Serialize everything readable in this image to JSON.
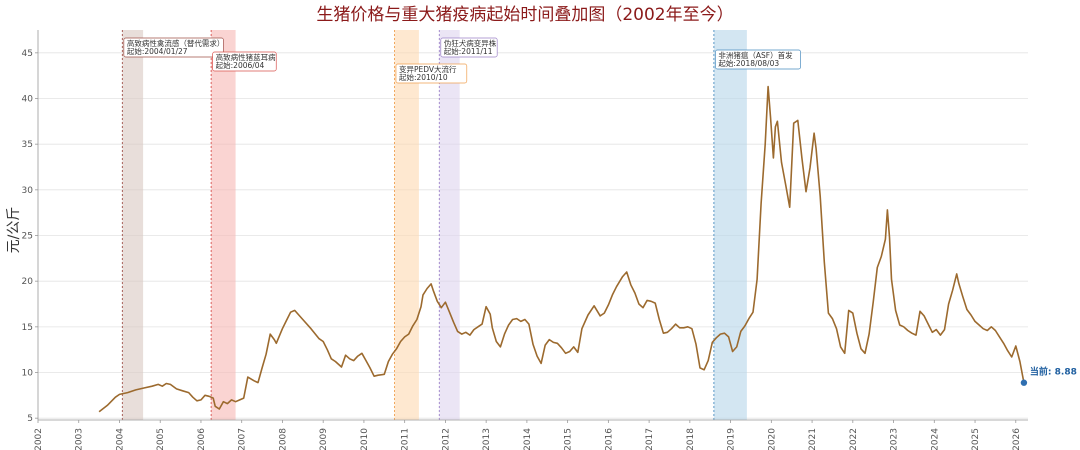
{
  "chart_data": {
    "type": "line",
    "title": "生猪价格与重大猪疫病起始时间叠加图（2002年至今）",
    "ylabel": "元/公斤",
    "xlabel": "",
    "xlim": [
      2002.0,
      2026.3
    ],
    "ylim": [
      4.8,
      47.5
    ],
    "x_ticks": [
      "2002",
      "2003",
      "2004",
      "2005",
      "2006",
      "2007",
      "2008",
      "2009",
      "2010",
      "2011",
      "2012",
      "2013",
      "2014",
      "2015",
      "2016",
      "2017",
      "2018",
      "2019",
      "2020",
      "2021",
      "2022",
      "2023",
      "2024",
      "2025",
      "2026"
    ],
    "y_ticks": [
      5,
      10,
      15,
      20,
      25,
      30,
      35,
      40,
      45
    ],
    "grid": "horizontal",
    "line_color": "#9c6a2e",
    "series": [
      {
        "points": [
          [
            2003.5,
            5.7
          ],
          [
            2003.7,
            6.4
          ],
          [
            2003.9,
            7.3
          ],
          [
            2004.0,
            7.6
          ],
          [
            2004.2,
            7.8
          ],
          [
            2004.4,
            8.1
          ],
          [
            2004.6,
            8.3
          ],
          [
            2004.8,
            8.5
          ],
          [
            2004.95,
            8.7
          ],
          [
            2005.05,
            8.5
          ],
          [
            2005.15,
            8.8
          ],
          [
            2005.25,
            8.7
          ],
          [
            2005.4,
            8.2
          ],
          [
            2005.55,
            8.0
          ],
          [
            2005.7,
            7.8
          ],
          [
            2005.8,
            7.3
          ],
          [
            2005.9,
            6.9
          ],
          [
            2006.0,
            7.0
          ],
          [
            2006.1,
            7.5
          ],
          [
            2006.2,
            7.4
          ],
          [
            2006.3,
            7.2
          ],
          [
            2006.35,
            6.3
          ],
          [
            2006.45,
            6.0
          ],
          [
            2006.55,
            6.8
          ],
          [
            2006.65,
            6.6
          ],
          [
            2006.75,
            7.0
          ],
          [
            2006.85,
            6.8
          ],
          [
            2006.95,
            7.0
          ],
          [
            2007.05,
            7.2
          ],
          [
            2007.15,
            9.5
          ],
          [
            2007.3,
            9.1
          ],
          [
            2007.4,
            8.9
          ],
          [
            2007.5,
            10.5
          ],
          [
            2007.6,
            12.0
          ],
          [
            2007.7,
            14.2
          ],
          [
            2007.8,
            13.6
          ],
          [
            2007.85,
            13.2
          ],
          [
            2008.0,
            14.8
          ],
          [
            2008.1,
            15.7
          ],
          [
            2008.2,
            16.6
          ],
          [
            2008.3,
            16.8
          ],
          [
            2008.5,
            15.8
          ],
          [
            2008.7,
            14.8
          ],
          [
            2008.9,
            13.7
          ],
          [
            2009.0,
            13.4
          ],
          [
            2009.1,
            12.5
          ],
          [
            2009.2,
            11.5
          ],
          [
            2009.3,
            11.2
          ],
          [
            2009.45,
            10.6
          ],
          [
            2009.55,
            11.9
          ],
          [
            2009.65,
            11.5
          ],
          [
            2009.75,
            11.3
          ],
          [
            2009.85,
            11.8
          ],
          [
            2009.95,
            12.1
          ],
          [
            2010.05,
            11.3
          ],
          [
            2010.15,
            10.5
          ],
          [
            2010.25,
            9.6
          ],
          [
            2010.35,
            9.7
          ],
          [
            2010.5,
            9.8
          ],
          [
            2010.6,
            11.2
          ],
          [
            2010.7,
            12.0
          ],
          [
            2010.8,
            12.6
          ],
          [
            2010.9,
            13.4
          ],
          [
            2011.0,
            13.9
          ],
          [
            2011.1,
            14.2
          ],
          [
            2011.2,
            15.1
          ],
          [
            2011.3,
            15.8
          ],
          [
            2011.4,
            17.2
          ],
          [
            2011.45,
            18.5
          ],
          [
            2011.55,
            19.2
          ],
          [
            2011.65,
            19.7
          ],
          [
            2011.7,
            19.0
          ],
          [
            2011.8,
            17.8
          ],
          [
            2011.9,
            17.1
          ],
          [
            2012.0,
            17.7
          ],
          [
            2012.1,
            16.6
          ],
          [
            2012.2,
            15.5
          ],
          [
            2012.3,
            14.5
          ],
          [
            2012.4,
            14.2
          ],
          [
            2012.5,
            14.4
          ],
          [
            2012.6,
            14.1
          ],
          [
            2012.7,
            14.7
          ],
          [
            2012.8,
            15.0
          ],
          [
            2012.9,
            15.3
          ],
          [
            2013.0,
            17.2
          ],
          [
            2013.1,
            16.4
          ],
          [
            2013.15,
            14.9
          ],
          [
            2013.25,
            13.4
          ],
          [
            2013.35,
            12.8
          ],
          [
            2013.45,
            14.2
          ],
          [
            2013.55,
            15.2
          ],
          [
            2013.65,
            15.8
          ],
          [
            2013.75,
            15.9
          ],
          [
            2013.85,
            15.6
          ],
          [
            2013.95,
            15.8
          ],
          [
            2014.05,
            15.3
          ],
          [
            2014.15,
            13.1
          ],
          [
            2014.25,
            11.8
          ],
          [
            2014.35,
            11.0
          ],
          [
            2014.45,
            13.0
          ],
          [
            2014.55,
            13.6
          ],
          [
            2014.65,
            13.3
          ],
          [
            2014.75,
            13.2
          ],
          [
            2014.85,
            12.7
          ],
          [
            2014.95,
            12.1
          ],
          [
            2015.05,
            12.3
          ],
          [
            2015.15,
            12.8
          ],
          [
            2015.25,
            12.2
          ],
          [
            2015.35,
            14.8
          ],
          [
            2015.5,
            16.3
          ],
          [
            2015.65,
            17.3
          ],
          [
            2015.8,
            16.2
          ],
          [
            2015.9,
            16.5
          ],
          [
            2016.0,
            17.4
          ],
          [
            2016.1,
            18.5
          ],
          [
            2016.2,
            19.4
          ],
          [
            2016.35,
            20.5
          ],
          [
            2016.45,
            21.0
          ],
          [
            2016.55,
            19.6
          ],
          [
            2016.65,
            18.7
          ],
          [
            2016.75,
            17.5
          ],
          [
            2016.85,
            17.1
          ],
          [
            2016.95,
            17.9
          ],
          [
            2017.05,
            17.8
          ],
          [
            2017.15,
            17.6
          ],
          [
            2017.25,
            15.8
          ],
          [
            2017.35,
            14.3
          ],
          [
            2017.45,
            14.4
          ],
          [
            2017.55,
            14.8
          ],
          [
            2017.65,
            15.3
          ],
          [
            2017.75,
            14.9
          ],
          [
            2017.85,
            14.9
          ],
          [
            2017.95,
            15.0
          ],
          [
            2018.05,
            14.8
          ],
          [
            2018.15,
            13.1
          ],
          [
            2018.25,
            10.5
          ],
          [
            2018.35,
            10.3
          ],
          [
            2018.45,
            11.3
          ],
          [
            2018.55,
            13.3
          ],
          [
            2018.65,
            13.8
          ],
          [
            2018.75,
            14.2
          ],
          [
            2018.85,
            14.3
          ],
          [
            2018.95,
            13.9
          ],
          [
            2019.05,
            12.3
          ],
          [
            2019.15,
            12.8
          ],
          [
            2019.25,
            14.5
          ],
          [
            2019.35,
            15.1
          ],
          [
            2019.45,
            15.9
          ],
          [
            2019.55,
            16.6
          ],
          [
            2019.65,
            20.2
          ],
          [
            2019.75,
            28.5
          ],
          [
            2019.85,
            35.0
          ],
          [
            2019.92,
            41.3
          ],
          [
            2019.98,
            38.0
          ],
          [
            2020.05,
            33.5
          ],
          [
            2020.1,
            36.9
          ],
          [
            2020.15,
            37.5
          ],
          [
            2020.25,
            33.0
          ],
          [
            2020.35,
            30.6
          ],
          [
            2020.45,
            28.1
          ],
          [
            2020.55,
            37.3
          ],
          [
            2020.65,
            37.6
          ],
          [
            2020.75,
            33.5
          ],
          [
            2020.85,
            29.8
          ],
          [
            2020.95,
            32.4
          ],
          [
            2021.05,
            36.2
          ],
          [
            2021.1,
            34.5
          ],
          [
            2021.2,
            29.3
          ],
          [
            2021.3,
            22.1
          ],
          [
            2021.4,
            16.5
          ],
          [
            2021.5,
            15.9
          ],
          [
            2021.6,
            14.8
          ],
          [
            2021.7,
            12.8
          ],
          [
            2021.8,
            12.1
          ],
          [
            2021.9,
            16.8
          ],
          [
            2022.0,
            16.5
          ],
          [
            2022.1,
            14.3
          ],
          [
            2022.2,
            12.6
          ],
          [
            2022.3,
            12.1
          ],
          [
            2022.4,
            14.2
          ],
          [
            2022.5,
            17.7
          ],
          [
            2022.6,
            21.5
          ],
          [
            2022.7,
            22.7
          ],
          [
            2022.8,
            24.6
          ],
          [
            2022.85,
            27.8
          ],
          [
            2022.9,
            24.8
          ],
          [
            2022.95,
            20.2
          ],
          [
            2023.05,
            16.8
          ],
          [
            2023.15,
            15.2
          ],
          [
            2023.25,
            15.0
          ],
          [
            2023.35,
            14.6
          ],
          [
            2023.45,
            14.3
          ],
          [
            2023.55,
            14.1
          ],
          [
            2023.65,
            16.7
          ],
          [
            2023.75,
            16.2
          ],
          [
            2023.85,
            15.3
          ],
          [
            2023.95,
            14.4
          ],
          [
            2024.05,
            14.7
          ],
          [
            2024.15,
            14.1
          ],
          [
            2024.25,
            14.7
          ],
          [
            2024.35,
            17.5
          ],
          [
            2024.45,
            19.0
          ],
          [
            2024.55,
            20.8
          ],
          [
            2024.6,
            19.8
          ],
          [
            2024.7,
            18.3
          ],
          [
            2024.8,
            16.9
          ],
          [
            2024.9,
            16.3
          ],
          [
            2025.0,
            15.6
          ],
          [
            2025.1,
            15.2
          ],
          [
            2025.2,
            14.8
          ],
          [
            2025.3,
            14.6
          ],
          [
            2025.4,
            15.0
          ],
          [
            2025.5,
            14.6
          ],
          [
            2025.6,
            13.9
          ],
          [
            2025.7,
            13.2
          ],
          [
            2025.8,
            12.4
          ],
          [
            2025.9,
            11.7
          ],
          [
            2026.0,
            12.9
          ],
          [
            2026.1,
            11.2
          ],
          [
            2026.2,
            8.88
          ]
        ]
      }
    ],
    "current": {
      "label": "当前: 8.88",
      "value": 8.88,
      "x": 2026.2
    },
    "events": [
      {
        "label1": "高致病性禽流感（替代需求）",
        "label2": "起始:2004/01/27",
        "x_start": 2004.07,
        "x_end": 2004.58,
        "fill": "#d9c8c2",
        "stroke": "#a0524a"
      },
      {
        "label1": "高致病性猪蓝耳病",
        "label2": "起始:2006/04",
        "x_start": 2006.25,
        "x_end": 2006.85,
        "fill": "#f7b8b4",
        "stroke": "#d9534f"
      },
      {
        "label1": "变异PEDV大流行",
        "label2": "起始:2010/10",
        "x_start": 2010.75,
        "x_end": 2011.35,
        "fill": "#fdd9b0",
        "stroke": "#f0a050"
      },
      {
        "label1": "伪狂犬病变异株",
        "label2": "起始:2011/11",
        "x_start": 2011.85,
        "x_end": 2012.35,
        "fill": "#ddd3ee",
        "stroke": "#9c82c8"
      },
      {
        "label1": "非洲猪瘟（ASF）首发",
        "label2": "起始:2018/08/03",
        "x_start": 2018.59,
        "x_end": 2019.4,
        "fill": "#b5d5ea",
        "stroke": "#4a8dc0"
      }
    ]
  }
}
